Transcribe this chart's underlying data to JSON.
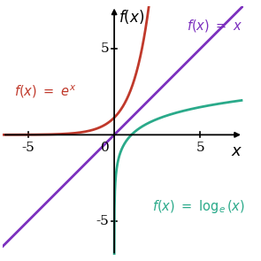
{
  "xlim": [
    -6.5,
    7.5
  ],
  "ylim": [
    -7,
    7.5
  ],
  "xticks": [
    -5,
    5
  ],
  "yticks": [
    -5,
    5
  ],
  "bg_color": "#ffffff",
  "exp_color": "#c0392b",
  "linear_color": "#7b2fbe",
  "log_color": "#2aaa8a",
  "axis_color": "#000000",
  "tick_label_fontsize": 11,
  "annotation_fontsize": 10.5
}
